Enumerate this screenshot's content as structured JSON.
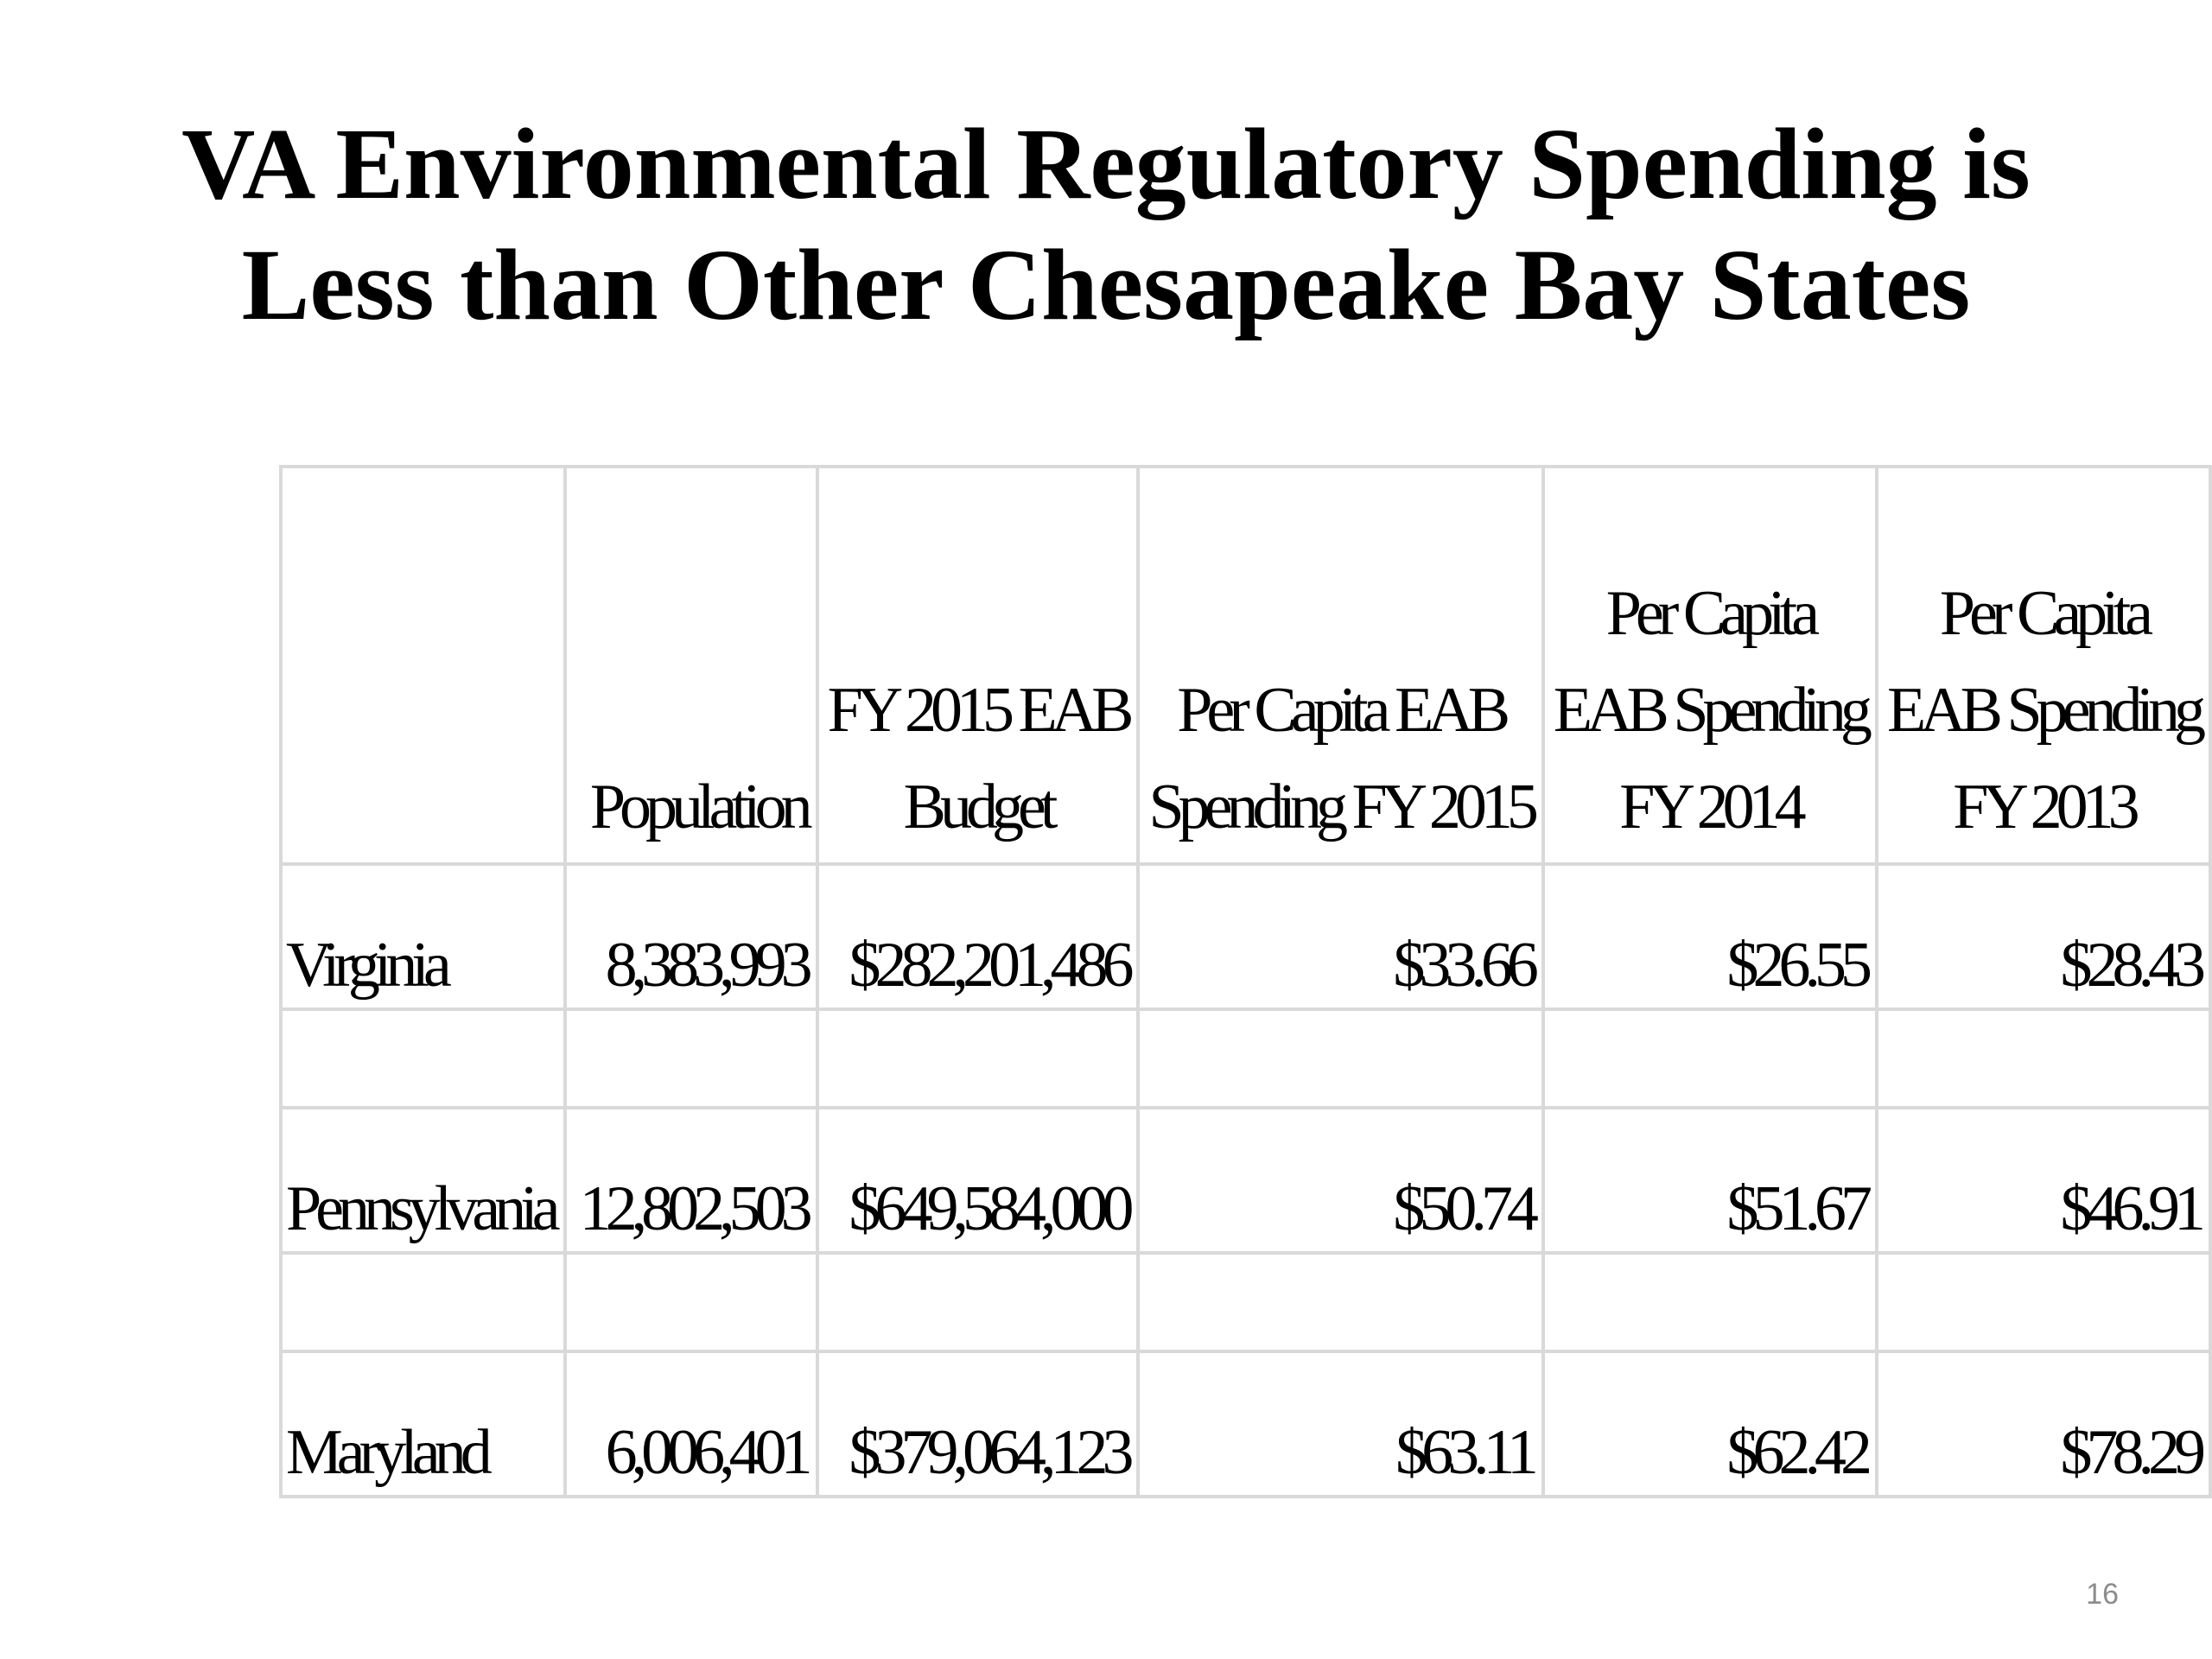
{
  "slide": {
    "title_line1": "VA Environmental Regulatory Spending is",
    "title_line2": "Less than Other Chesapeake Bay States",
    "page_number": "16"
  },
  "table": {
    "headers": [
      {
        "lines": [
          ""
        ]
      },
      {
        "lines": [
          "Population"
        ]
      },
      {
        "lines": [
          "FY 2015 EAB",
          "Budget"
        ]
      },
      {
        "lines": [
          "Per Capita EAB",
          "Spending FY 2015"
        ]
      },
      {
        "lines": [
          "Per Capita",
          "EAB Spending",
          "FY 2014"
        ]
      },
      {
        "lines": [
          "Per Capita",
          "EAB Spending",
          "FY 2013"
        ]
      }
    ],
    "rows": [
      [
        "Virginia",
        "8,383,993",
        "$282,201,486",
        "$33.66",
        "$26.55",
        "$28.43"
      ],
      [
        "",
        "",
        "",
        "",
        "",
        ""
      ],
      [
        "Pennsylvania",
        "12,802,503",
        "$649,584,000",
        "$50.74",
        "$51.67",
        "$46.91"
      ],
      [
        "",
        "",
        "",
        "",
        "",
        ""
      ],
      [
        "Maryland",
        "6,006,401",
        "$379,064,123",
        "$63.11",
        "$62.42",
        "$78.29"
      ]
    ]
  }
}
